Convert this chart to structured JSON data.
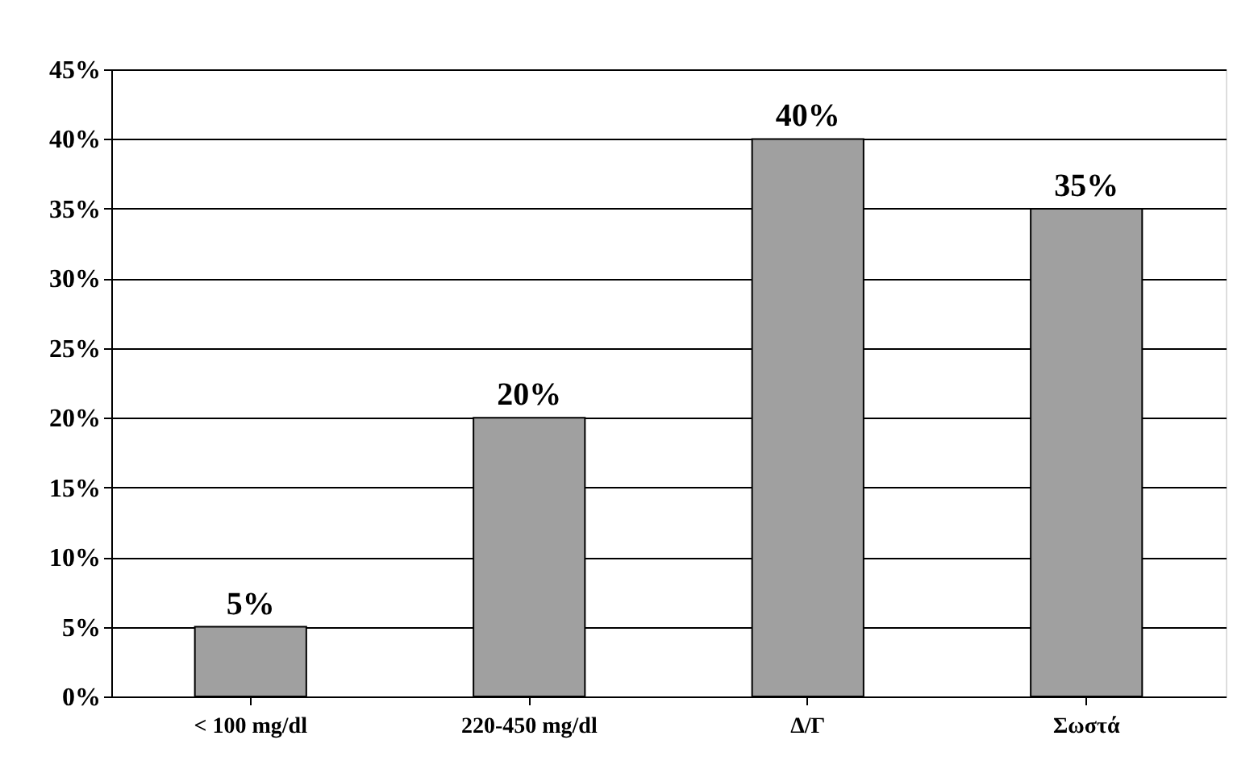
{
  "chart_data": {
    "type": "bar",
    "categories": [
      "< 100 mg/dl",
      "220-450 mg/dl",
      "Δ/Γ",
      "Σωστά"
    ],
    "values": [
      5,
      20,
      40,
      35
    ],
    "value_labels": [
      "5%",
      "20%",
      "40%",
      "35%"
    ],
    "color": "#a0a0a0",
    "ylim": [
      0,
      45
    ],
    "yticks": [
      {
        "value": 0,
        "label": "0%"
      },
      {
        "value": 5,
        "label": "5%"
      },
      {
        "value": 10,
        "label": "10%"
      },
      {
        "value": 15,
        "label": "15%"
      },
      {
        "value": 20,
        "label": "20%"
      },
      {
        "value": 25,
        "label": "25%"
      },
      {
        "value": 30,
        "label": "30%"
      },
      {
        "value": 35,
        "label": "35%"
      },
      {
        "value": 40,
        "label": "40%"
      },
      {
        "value": 45,
        "label": "45%"
      }
    ],
    "grid": "y"
  }
}
